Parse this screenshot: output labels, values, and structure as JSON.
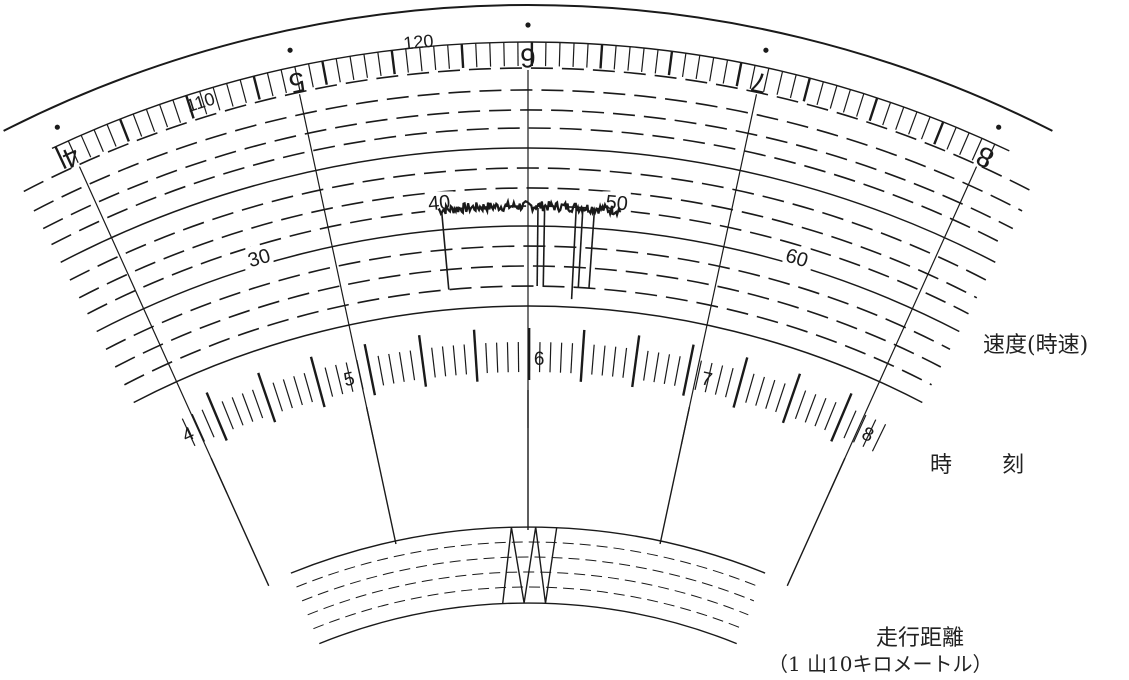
{
  "labels": {
    "speed": "速度(時速)",
    "time": "時　刻",
    "distance": "走行距離",
    "distance_unit": "（1 山10キロメートル）"
  },
  "outer_scale_labels": [
    "110",
    "120"
  ],
  "outer_hour_digits": [
    "4",
    "5",
    "6",
    "7",
    "8"
  ],
  "speed_labels": [
    "30",
    "40",
    "50",
    "60"
  ],
  "time_labels": [
    "4",
    "5",
    "6",
    "7",
    "8"
  ],
  "colors": {
    "ink": "#1a1a1a",
    "background": "#ffffff"
  }
}
